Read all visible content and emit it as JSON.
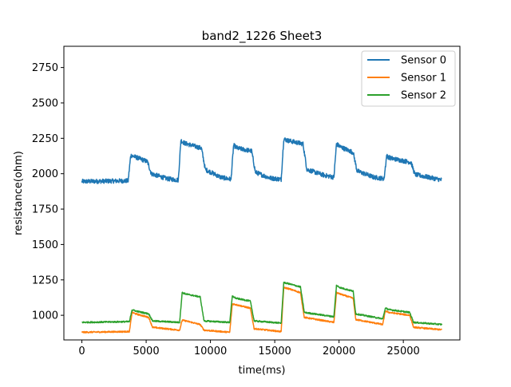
{
  "chart_data": {
    "type": "line",
    "title": "band2_1226 Sheet3",
    "xlabel": "time(ms)",
    "ylabel": "resistance(ohm)",
    "xlim": [
      -1400,
      29400
    ],
    "ylim": [
      826,
      2900
    ],
    "xticks": [
      0,
      5000,
      10000,
      15000,
      20000,
      25000
    ],
    "xtick_labels": [
      "0",
      "5000",
      "10000",
      "15000",
      "20000",
      "25000"
    ],
    "yticks": [
      1000,
      1250,
      1500,
      1750,
      2000,
      2250,
      2500,
      2750
    ],
    "ytick_labels": [
      "1000",
      "1250",
      "1500",
      "1750",
      "2000",
      "2250",
      "2500",
      "2750"
    ],
    "grid": false,
    "legend_position": "top-right",
    "x_range": [
      0,
      28000
    ],
    "series": [
      {
        "name": "Sensor 0",
        "color": "#1f77b4",
        "noise": 16,
        "x": [
          0,
          3600,
          3800,
          4100,
          5100,
          5400,
          6600,
          7500,
          7700,
          8000,
          9300,
          9600,
          10800,
          11600,
          11800,
          12100,
          13200,
          13500,
          14600,
          15500,
          15700,
          16000,
          17200,
          17500,
          18800,
          19600,
          19800,
          20100,
          21100,
          21400,
          22700,
          23500,
          23700,
          24000,
          25600,
          25900,
          28000
        ],
        "y": [
          1945,
          1950,
          2130,
          2120,
          2085,
          2000,
          1965,
          1955,
          2235,
          2215,
          2180,
          2030,
          1975,
          1960,
          2200,
          2180,
          2160,
          2010,
          1970,
          1960,
          2245,
          2235,
          2210,
          2030,
          1990,
          1975,
          2210,
          2190,
          2150,
          2020,
          1975,
          1965,
          2125,
          2110,
          2080,
          1995,
          1955
        ]
      },
      {
        "name": "Sensor 1",
        "color": "#ff7f0e",
        "noise": 5,
        "x": [
          0,
          3700,
          3900,
          4200,
          5200,
          5500,
          7600,
          7800,
          8100,
          9200,
          9500,
          11500,
          11700,
          12000,
          13100,
          13400,
          15500,
          15700,
          16000,
          17000,
          17300,
          19600,
          19800,
          20100,
          21100,
          21300,
          23400,
          23600,
          23900,
          25500,
          25800,
          28000
        ],
        "y": [
          880,
          885,
          1020,
          1010,
          985,
          915,
          895,
          965,
          960,
          935,
          895,
          880,
          1080,
          1075,
          1050,
          905,
          885,
          1195,
          1190,
          1160,
          985,
          950,
          1160,
          1150,
          1120,
          970,
          935,
          1030,
          1020,
          1000,
          915,
          898
        ]
      },
      {
        "name": "Sensor 2",
        "color": "#2ca02c",
        "noise": 5,
        "x": [
          0,
          3700,
          3900,
          4200,
          5200,
          5500,
          7600,
          7800,
          8100,
          9200,
          9500,
          11500,
          11700,
          12000,
          13100,
          13400,
          15500,
          15700,
          16000,
          17000,
          17300,
          19600,
          19800,
          20100,
          21100,
          21300,
          23400,
          23600,
          23900,
          25500,
          25800,
          28000
        ],
        "y": [
          950,
          955,
          1040,
          1030,
          1010,
          960,
          950,
          1160,
          1150,
          1130,
          960,
          950,
          1135,
          1120,
          1100,
          960,
          945,
          1230,
          1225,
          1200,
          1020,
          990,
          1210,
          1195,
          1170,
          1010,
          975,
          1050,
          1040,
          1020,
          950,
          935
        ]
      }
    ]
  }
}
